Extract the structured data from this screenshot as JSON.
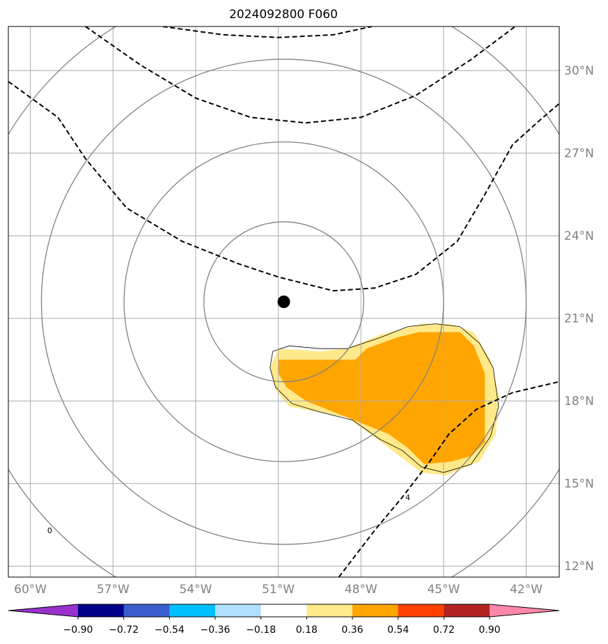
{
  "chart_data": {
    "type": "heatmap",
    "title": "2024092800 F060",
    "map": {
      "lon_range": [
        -60.8,
        -40.8
      ],
      "lat_range": [
        11.6,
        31.6
      ],
      "x_tick_labels": [
        "60°W",
        "57°W",
        "54°W",
        "51°W",
        "48°W",
        "45°W",
        "42°W"
      ],
      "x_ticks": [
        -60,
        -57,
        -54,
        -51,
        -48,
        -45,
        -42
      ],
      "y_tick_labels": [
        "12°N",
        "15°N",
        "18°N",
        "21°N",
        "24°N",
        "27°N",
        "30°N"
      ],
      "y_ticks": [
        12,
        15,
        18,
        21,
        24,
        27,
        30
      ],
      "y_labels_side": "right",
      "grid": true
    },
    "center_marker": {
      "lon": -50.8,
      "lat": 21.6
    },
    "range_rings": [
      {
        "lon": -50.8,
        "lat": 21.6,
        "r_deg": 2.9
      },
      {
        "lon": -50.8,
        "lat": 21.6,
        "r_deg": 5.8
      },
      {
        "lon": -50.8,
        "lat": 21.6,
        "r_deg": 8.8
      },
      {
        "lon": -50.8,
        "lat": 21.6,
        "r_deg": 11.7
      }
    ],
    "dashed_contours": [
      [
        [
          -58.0,
          31.6
        ],
        [
          -56.0,
          30.2
        ],
        [
          -54.0,
          29.0
        ],
        [
          -52.0,
          28.3
        ],
        [
          -50.0,
          28.1
        ],
        [
          -48.0,
          28.3
        ],
        [
          -46.0,
          29.1
        ],
        [
          -44.0,
          30.4
        ],
        [
          -42.4,
          31.6
        ]
      ],
      [
        [
          -60.8,
          29.6
        ],
        [
          -59.0,
          28.3
        ],
        [
          -58.0,
          26.8
        ],
        [
          -56.5,
          25.0
        ],
        [
          -54.5,
          23.8
        ],
        [
          -52.5,
          23.0
        ],
        [
          -51.0,
          22.5
        ],
        [
          -49.0,
          22.0
        ],
        [
          -47.5,
          22.1
        ],
        [
          -46.0,
          22.6
        ],
        [
          -44.5,
          23.8
        ],
        [
          -43.5,
          25.5
        ],
        [
          -42.5,
          27.3
        ],
        [
          -41.5,
          28.2
        ],
        [
          -40.8,
          28.8
        ]
      ],
      [
        [
          -55.2,
          31.6
        ],
        [
          -53.0,
          31.3
        ],
        [
          -51.0,
          31.2
        ],
        [
          -49.0,
          31.3
        ],
        [
          -47.6,
          31.6
        ]
      ],
      [
        [
          -48.8,
          11.6
        ],
        [
          -47.5,
          13.3
        ],
        [
          -46.5,
          14.5
        ],
        [
          -45.5,
          15.8
        ],
        [
          -44.8,
          16.8
        ],
        [
          -43.8,
          17.7
        ],
        [
          -42.5,
          18.3
        ],
        [
          -40.8,
          18.7
        ]
      ]
    ],
    "contour_labels": [
      {
        "text": "4",
        "lon": -46.3,
        "lat": 14.5
      },
      {
        "text": "0",
        "lon": -59.3,
        "lat": 13.3
      }
    ],
    "shaded_regions": [
      {
        "level": "0.18-0.36",
        "color": "#ffe98a",
        "polygon": [
          [
            -51.0,
            19.9
          ],
          [
            -49.5,
            19.8
          ],
          [
            -48.5,
            19.9
          ],
          [
            -47.3,
            20.4
          ],
          [
            -45.8,
            20.8
          ],
          [
            -44.8,
            20.8
          ],
          [
            -43.9,
            20.5
          ],
          [
            -43.3,
            19.5
          ],
          [
            -43.0,
            18.2
          ],
          [
            -43.1,
            16.8
          ],
          [
            -43.7,
            15.8
          ],
          [
            -44.9,
            15.3
          ],
          [
            -45.8,
            15.4
          ],
          [
            -46.6,
            16.0
          ],
          [
            -47.4,
            16.6
          ],
          [
            -48.5,
            17.4
          ],
          [
            -49.6,
            17.6
          ],
          [
            -50.6,
            17.8
          ],
          [
            -51.1,
            18.4
          ],
          [
            -51.3,
            19.2
          ]
        ]
      },
      {
        "level": "0.36-0.54",
        "color": "#ffa500",
        "polygon": [
          [
            -51.0,
            19.5
          ],
          [
            -49.5,
            19.5
          ],
          [
            -48.2,
            19.5
          ],
          [
            -47.8,
            19.9
          ],
          [
            -46.7,
            20.3
          ],
          [
            -45.9,
            20.5
          ],
          [
            -44.4,
            20.5
          ],
          [
            -43.9,
            20.0
          ],
          [
            -43.5,
            19.0
          ],
          [
            -43.5,
            17.5
          ],
          [
            -43.5,
            16.5
          ],
          [
            -44.0,
            16.0
          ],
          [
            -44.7,
            15.8
          ],
          [
            -45.7,
            15.7
          ],
          [
            -46.3,
            16.3
          ],
          [
            -47.0,
            16.8
          ],
          [
            -48.0,
            17.2
          ],
          [
            -49.0,
            17.6
          ],
          [
            -50.0,
            18.0
          ],
          [
            -50.7,
            18.5
          ],
          [
            -51.0,
            19.0
          ]
        ]
      }
    ],
    "thin_contour": [
      [
        -51.2,
        19.8
      ],
      [
        -50.6,
        20.0
      ],
      [
        -49.5,
        19.9
      ],
      [
        -48.5,
        19.9
      ],
      [
        -47.3,
        20.3
      ],
      [
        -46.3,
        20.7
      ],
      [
        -45.3,
        20.8
      ],
      [
        -44.4,
        20.7
      ],
      [
        -43.7,
        20.1
      ],
      [
        -43.2,
        19.2
      ],
      [
        -43.0,
        17.8
      ],
      [
        -43.3,
        16.7
      ],
      [
        -44.0,
        15.7
      ],
      [
        -45.0,
        15.4
      ],
      [
        -45.8,
        15.6
      ],
      [
        -46.5,
        16.2
      ],
      [
        -47.3,
        16.6
      ],
      [
        -48.3,
        17.3
      ],
      [
        -49.5,
        17.6
      ],
      [
        -50.5,
        17.9
      ],
      [
        -51.1,
        18.5
      ],
      [
        -51.3,
        19.2
      ]
    ],
    "colorbar": {
      "boundaries": [
        -0.9,
        -0.72,
        -0.54,
        -0.36,
        -0.18,
        0.18,
        0.36,
        0.54,
        0.72,
        0.9
      ],
      "labels": [
        "−0.90",
        "−0.72",
        "−0.54",
        "−0.36",
        "−0.18",
        "0.18",
        "0.36",
        "0.54",
        "0.72",
        "0.90"
      ],
      "colors": [
        "#9932cc",
        "#00008b",
        "#3b5ecf",
        "#00bfff",
        "#b0e0ff",
        "#ffffff",
        "#ffe98a",
        "#ffa500",
        "#ff4000",
        "#b22222",
        "#ff88aa"
      ],
      "extend": "both"
    }
  }
}
